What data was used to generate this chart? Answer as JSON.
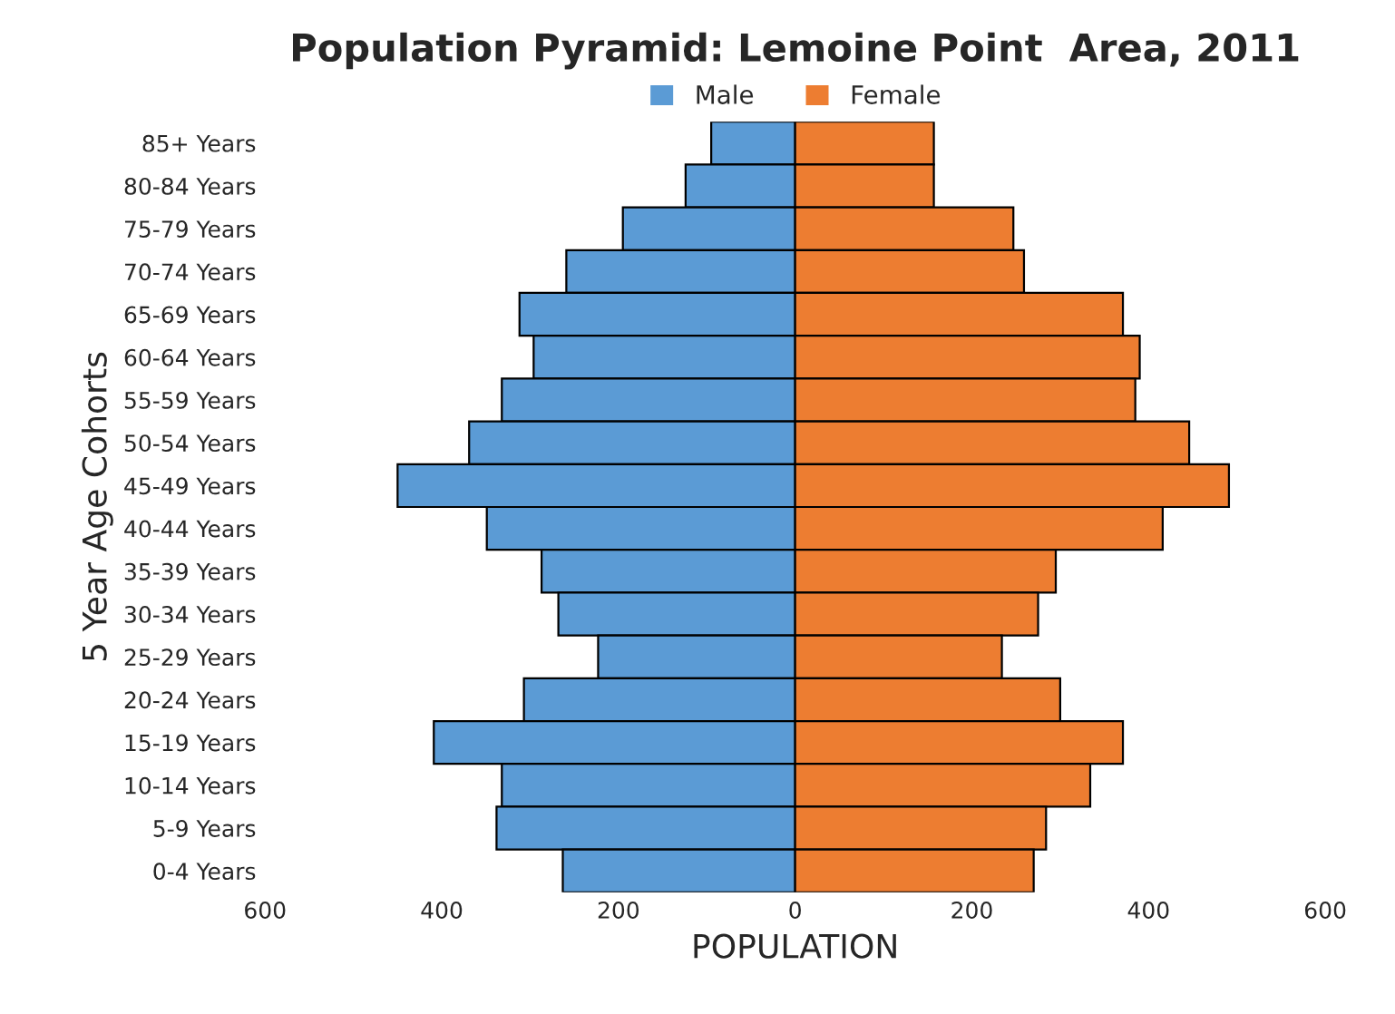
{
  "chart_data": {
    "type": "bar",
    "orientation": "horizontal",
    "stacked": true,
    "title": "Population Pyramid: Lemoine Point  Area, 2011",
    "xlabel": "POPULATION",
    "ylabel": "5 Year Age Cohorts",
    "categories": [
      "85+ Years",
      "80-84 Years",
      "75-79 Years",
      "70-74 Years",
      "65-69 Years",
      "60-64 Years",
      "55-59 Years",
      "50-54 Years",
      "45-49 Years",
      "40-44 Years",
      "35-39 Years",
      "30-34 Years",
      "25-29 Years",
      "20-24 Years",
      "15-19 Years",
      "10-14 Years",
      "5-9 Years",
      "0-4 Years"
    ],
    "series": [
      {
        "name": "Male",
        "color": "#5b9bd5",
        "values": [
          -95,
          -124,
          -195,
          -259,
          -312,
          -296,
          -332,
          -369,
          -450,
          -349,
          -287,
          -268,
          -223,
          -307,
          -409,
          -332,
          -338,
          -263
        ]
      },
      {
        "name": "Female",
        "color": "#ed7d31",
        "values": [
          157,
          157,
          247,
          259,
          371,
          390,
          385,
          446,
          491,
          416,
          295,
          275,
          234,
          300,
          371,
          334,
          284,
          270
        ]
      }
    ],
    "xlim": [
      -600,
      600
    ],
    "xticks": [
      {
        "value": -600,
        "label": "600"
      },
      {
        "value": -400,
        "label": "400"
      },
      {
        "value": -200,
        "label": "200"
      },
      0,
      200,
      400,
      600
    ],
    "grid": false,
    "legend": "top"
  }
}
